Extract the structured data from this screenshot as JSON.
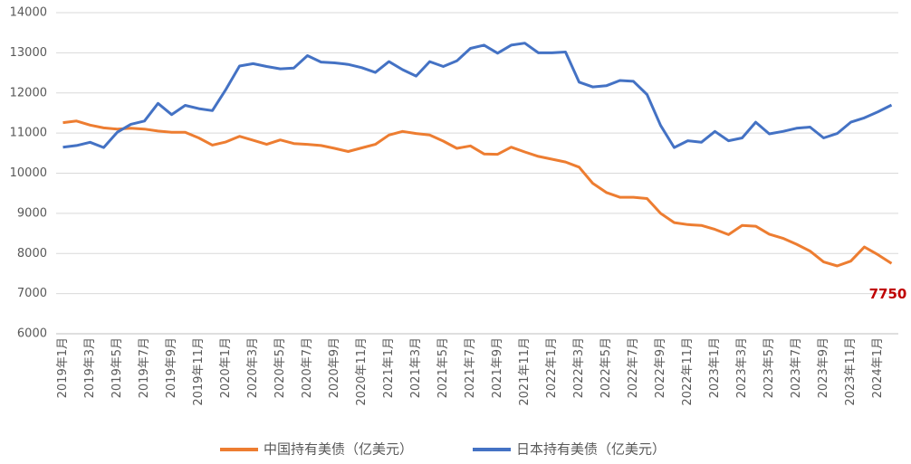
{
  "chart_data": {
    "type": "line",
    "categories": [
      "2019年1月",
      null,
      "2019年3月",
      null,
      "2019年5月",
      null,
      "2019年7月",
      null,
      "2019年9月",
      null,
      "2019年11月",
      null,
      "2020年1月",
      null,
      "2020年3月",
      null,
      "2020年5月",
      null,
      "2020年7月",
      null,
      "2020年9月",
      null,
      "2020年11月",
      null,
      "2021年1月",
      null,
      "2021年3月",
      null,
      "2021年5月",
      null,
      "2021年7月",
      null,
      "2021年9月",
      null,
      "2021年11月",
      null,
      "2022年1月",
      null,
      "2022年3月",
      null,
      "2022年5月",
      null,
      "2022年7月",
      null,
      "2022年9月",
      null,
      "2022年11月",
      null,
      "2023年1月",
      null,
      "2023年3月",
      null,
      "2023年5月",
      null,
      "2023年7月",
      null,
      "2023年9月",
      null,
      "2023年11月",
      null,
      "2024年1月",
      null
    ],
    "series": [
      {
        "name": "中国持有美债（亿美元）",
        "color": "#ED7D31",
        "values": [
          11260,
          11300,
          11200,
          11130,
          11100,
          11120,
          11100,
          11050,
          11020,
          11020,
          10880,
          10700,
          10780,
          10920,
          10820,
          10720,
          10830,
          10740,
          10720,
          10690,
          10620,
          10540,
          10630,
          10720,
          10950,
          11040,
          10990,
          10950,
          10800,
          10620,
          10680,
          10480,
          10470,
          10650,
          10530,
          10420,
          10350,
          10280,
          10150,
          9750,
          9520,
          9400,
          9400,
          9370,
          9000,
          8770,
          8720,
          8700,
          8600,
          8470,
          8700,
          8680,
          8480,
          8380,
          8230,
          8060,
          7790,
          7690,
          7810,
          8160,
          7970,
          7750
        ]
      },
      {
        "name": "日本持有美债（亿美元）",
        "color": "#4472C4",
        "values": [
          10650,
          10690,
          10770,
          10640,
          11020,
          11220,
          11300,
          11740,
          11460,
          11690,
          11610,
          11560,
          12090,
          12670,
          12730,
          12660,
          12600,
          12620,
          12930,
          12770,
          12750,
          12710,
          12630,
          12510,
          12780,
          12580,
          12420,
          12780,
          12660,
          12800,
          13110,
          13190,
          12990,
          13190,
          13240,
          13000,
          13000,
          13020,
          12270,
          12150,
          12180,
          12310,
          12290,
          11960,
          11190,
          10640,
          10810,
          10770,
          11040,
          10810,
          10880,
          11270,
          10980,
          11040,
          11120,
          11150,
          10880,
          10990,
          11270,
          11380,
          11530,
          11700
        ]
      }
    ],
    "annotation_color": "#C00000",
    "ylim": [
      6000,
      14000
    ],
    "yticks": [
      6000,
      7000,
      8000,
      9000,
      10000,
      11000,
      12000,
      13000,
      14000
    ],
    "grid": true,
    "legend": "bottom"
  }
}
